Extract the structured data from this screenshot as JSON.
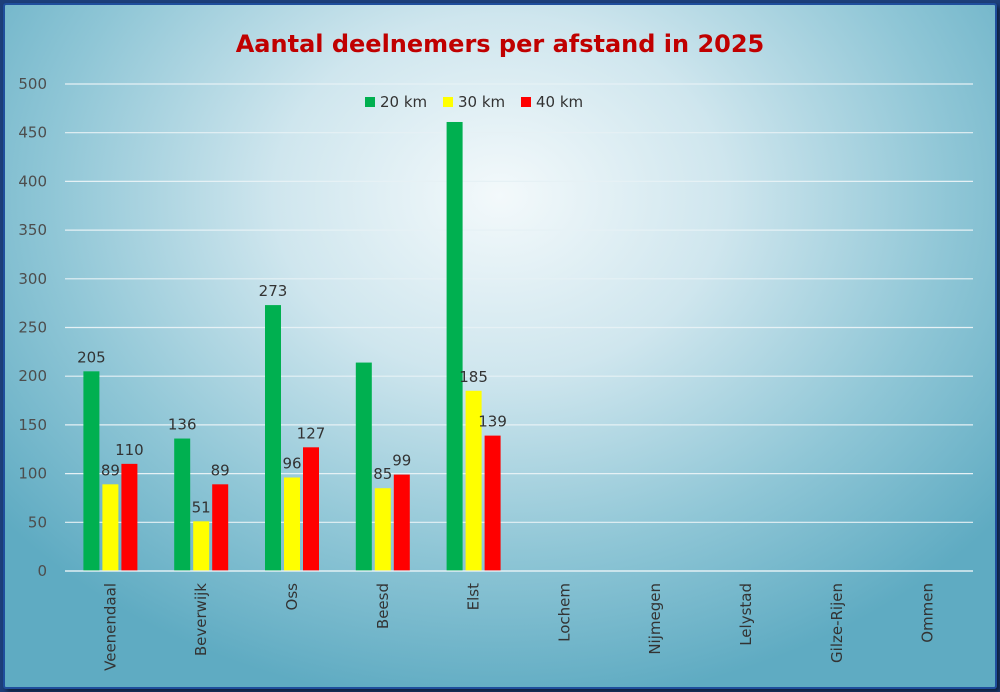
{
  "chart_data": {
    "type": "bar",
    "title": "Aantal deelnemers per afstand in 2025",
    "title_color": "#c00000",
    "xlabel": "",
    "ylabel": "",
    "ylim": [
      0,
      500
    ],
    "yticks": [
      0,
      50,
      100,
      150,
      200,
      250,
      300,
      350,
      400,
      450,
      500
    ],
    "grid": true,
    "legend_position": "top",
    "categories": [
      "Veenendaal",
      "Beverwijk",
      "Oss",
      "Beesd",
      "Elst",
      "Lochem",
      "Nijmegen",
      "Lelystad",
      "Gilze-Rijen",
      "Ommen"
    ],
    "series": [
      {
        "name": "20 km",
        "color": "#00b050",
        "values": [
          205,
          136,
          273,
          214,
          461,
          null,
          null,
          null,
          null,
          null
        ],
        "labels": [
          "205",
          "136",
          "273",
          null,
          null,
          null,
          null,
          null,
          null,
          null
        ]
      },
      {
        "name": "30 km",
        "color": "#ffff00",
        "values": [
          89,
          51,
          96,
          85,
          185,
          null,
          null,
          null,
          null,
          null
        ],
        "labels": [
          "89",
          "51",
          "96",
          "85",
          "185",
          null,
          null,
          null,
          null,
          null
        ]
      },
      {
        "name": "40 km",
        "color": "#ff0000",
        "values": [
          110,
          89,
          127,
          99,
          139,
          null,
          null,
          null,
          null,
          null
        ],
        "labels": [
          "110",
          "89",
          "127",
          "99",
          "139",
          null,
          null,
          null,
          null,
          null
        ]
      }
    ]
  }
}
